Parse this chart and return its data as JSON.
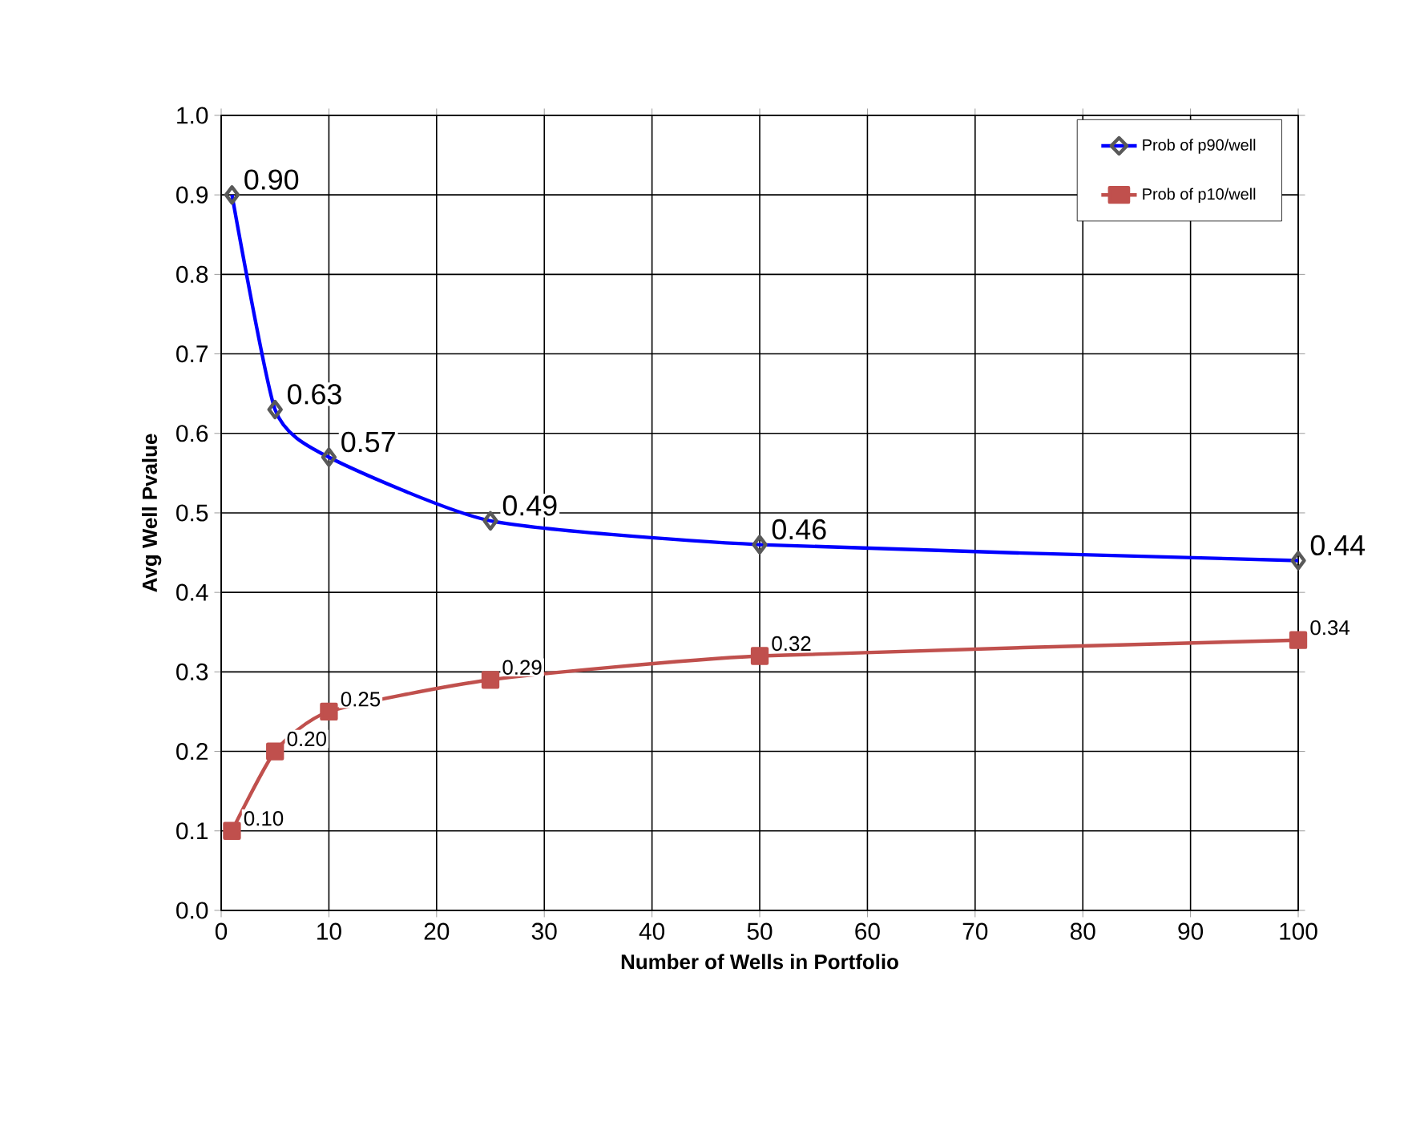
{
  "chart_data": {
    "type": "line",
    "xlabel": "Number of Wells in Portfolio",
    "ylabel": "Avg Well Pvalue",
    "x": [
      1,
      5,
      10,
      25,
      50,
      100
    ],
    "series": [
      {
        "name": "Prob of p90/well",
        "color": "#0000ff",
        "marker": "diamond",
        "values": [
          0.9,
          0.63,
          0.57,
          0.49,
          0.46,
          0.44
        ],
        "value_labels": [
          "0.90",
          "0.63",
          "0.57",
          "0.49",
          "0.46",
          "0.44"
        ]
      },
      {
        "name": "Prob of p10/well",
        "color": "#c0504d",
        "marker": "square",
        "values": [
          0.1,
          0.2,
          0.25,
          0.29,
          0.32,
          0.34
        ],
        "value_labels": [
          "0.10",
          "0.20",
          "0.25",
          "0.29",
          "0.32",
          "0.34"
        ]
      }
    ],
    "xlim": [
      0,
      100
    ],
    "xticks": [
      0,
      10,
      20,
      30,
      40,
      50,
      60,
      70,
      80,
      90,
      100
    ],
    "ylim": [
      0,
      1
    ],
    "yticks": [
      {
        "value": 0,
        "label": "0.0"
      },
      {
        "value": 0.1,
        "label": "0.1"
      },
      {
        "value": 0.2,
        "label": "0.2"
      },
      {
        "value": 0.3,
        "label": "0.3"
      },
      {
        "value": 0.4,
        "label": "0.4"
      },
      {
        "value": 0.5,
        "label": "0.5"
      },
      {
        "value": 0.6,
        "label": "0.6"
      },
      {
        "value": 0.7,
        "label": "0.7"
      },
      {
        "value": 0.8,
        "label": "0.8"
      },
      {
        "value": 0.9,
        "label": "0.9"
      },
      {
        "value": 1,
        "label": "1.0"
      }
    ],
    "grid": true,
    "legend": "top right"
  }
}
